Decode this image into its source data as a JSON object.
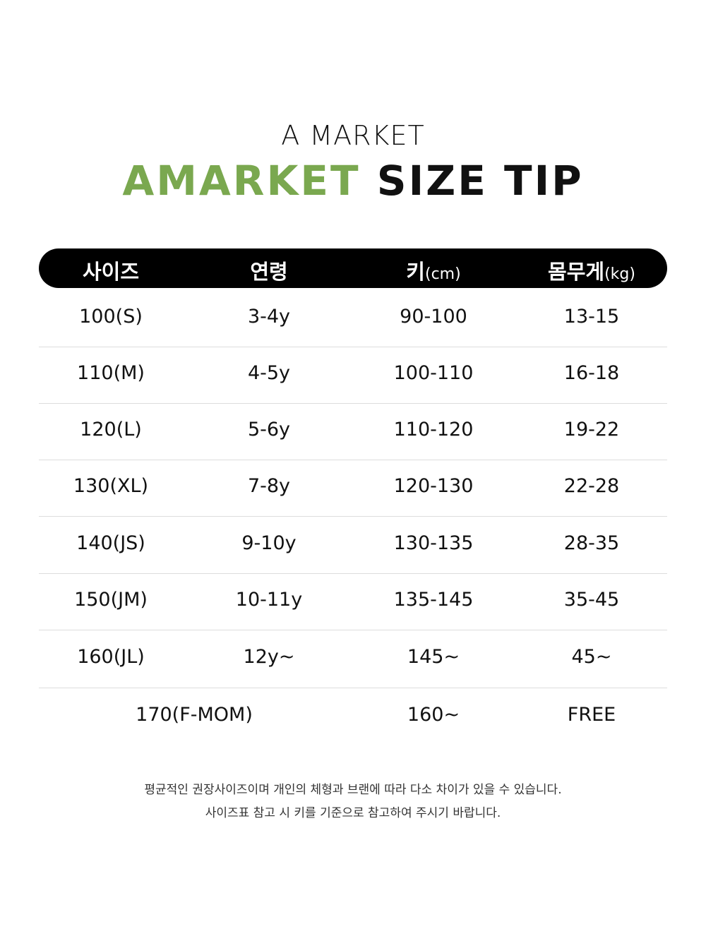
{
  "brand_subtitle": "A MARKET",
  "title": {
    "brand": "AMARKET",
    "rest": "SIZE TIP"
  },
  "colors": {
    "accent": "#7aa84f",
    "header_bg": "#000000"
  },
  "table": {
    "headers": [
      {
        "label": "사이즈",
        "unit": ""
      },
      {
        "label": "연령",
        "unit": ""
      },
      {
        "label": "키",
        "unit": "(cm)"
      },
      {
        "label": "몸무게",
        "unit": "(kg)"
      }
    ],
    "rows": [
      [
        "100(S)",
        "3-4y",
        "90-100",
        "13-15"
      ],
      [
        "110(M)",
        "4-5y",
        "100-110",
        "16-18"
      ],
      [
        "120(L)",
        "5-6y",
        "110-120",
        "19-22"
      ],
      [
        "130(XL)",
        "7-8y",
        "120-130",
        "22-28"
      ],
      [
        "140(JS)",
        "9-10y",
        "130-135",
        "28-35"
      ],
      [
        "150(JM)",
        "10-11y",
        "135-145",
        "35-45"
      ],
      [
        "160(JL)",
        "12y~",
        "145~",
        "45~"
      ],
      [
        "170(F-MOM)",
        "",
        "160~",
        "FREE"
      ]
    ]
  },
  "notes": [
    "평균적인  권장사이즈이며 개인의 체형과 브랜에 따라 다소 차이가 있을 수 있습니다.",
    "사이즈표 참고 시 키를 기준으로 참고하여 주시기 바랍니다."
  ]
}
